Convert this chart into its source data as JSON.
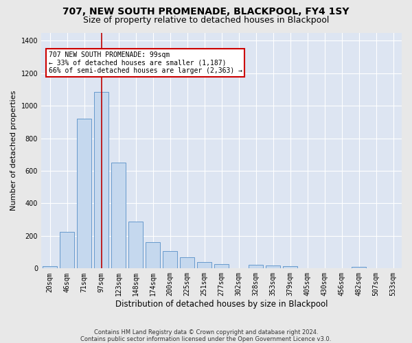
{
  "title": "707, NEW SOUTH PROMENADE, BLACKPOOL, FY4 1SY",
  "subtitle": "Size of property relative to detached houses in Blackpool",
  "xlabel": "Distribution of detached houses by size in Blackpool",
  "ylabel": "Number of detached properties",
  "categories": [
    "20sqm",
    "46sqm",
    "71sqm",
    "97sqm",
    "123sqm",
    "148sqm",
    "174sqm",
    "200sqm",
    "225sqm",
    "251sqm",
    "277sqm",
    "302sqm",
    "328sqm",
    "353sqm",
    "379sqm",
    "405sqm",
    "430sqm",
    "456sqm",
    "482sqm",
    "507sqm",
    "533sqm"
  ],
  "values": [
    15,
    225,
    920,
    1085,
    650,
    290,
    160,
    105,
    68,
    38,
    25,
    0,
    22,
    18,
    12,
    0,
    0,
    0,
    10,
    0,
    0
  ],
  "bar_color": "#c5d8ee",
  "bar_edge_color": "#6699cc",
  "vline_index": 3,
  "vline_color": "#bb0000",
  "annotation_line1": "707 NEW SOUTH PROMENADE: 99sqm",
  "annotation_line2": "← 33% of detached houses are smaller (1,187)",
  "annotation_line3": "66% of semi-detached houses are larger (2,363) →",
  "annotation_box_facecolor": "#ffffff",
  "annotation_box_edgecolor": "#cc0000",
  "ylim_max": 1450,
  "yticks": [
    0,
    200,
    400,
    600,
    800,
    1000,
    1200,
    1400
  ],
  "plot_bg_color": "#dde5f2",
  "fig_bg_color": "#e8e8e8",
  "grid_color": "#ffffff",
  "title_fontsize": 10,
  "subtitle_fontsize": 9,
  "xlabel_fontsize": 8.5,
  "ylabel_fontsize": 8,
  "tick_fontsize": 7,
  "annot_fontsize": 7,
  "footer": "Contains HM Land Registry data © Crown copyright and database right 2024.\nContains public sector information licensed under the Open Government Licence v3.0."
}
